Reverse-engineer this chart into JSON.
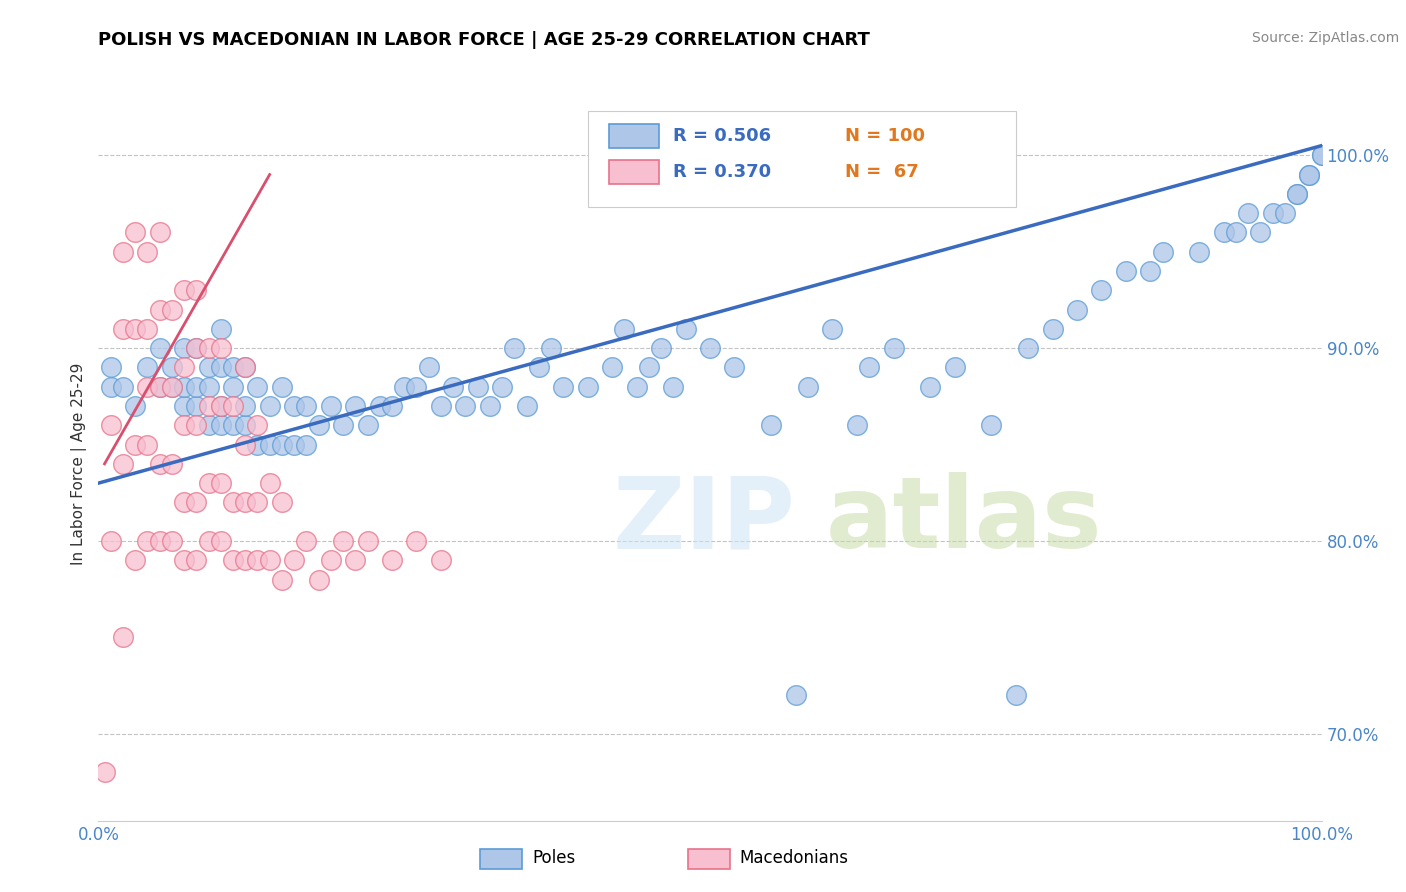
{
  "title": "POLISH VS MACEDONIAN IN LABOR FORCE | AGE 25-29 CORRELATION CHART",
  "source": "Source: ZipAtlas.com",
  "ylabel": "In Labor Force | Age 25-29",
  "xlim": [
    0.0,
    1.0
  ],
  "ylim": [
    0.655,
    1.025
  ],
  "y_ticks_right": [
    0.7,
    0.8,
    0.9,
    1.0
  ],
  "y_tick_labels_right": [
    "70.0%",
    "80.0%",
    "90.0%",
    "100.0%"
  ],
  "poles_color": "#aec6e8",
  "poles_edge_color": "#5b9bd5",
  "macedonians_color": "#f7bfd0",
  "macedonians_edge_color": "#e8728a",
  "trend_poles_color": "#3a6bbf",
  "trend_macedonians_color": "#d94f6e",
  "R_poles": 0.506,
  "N_poles": 100,
  "R_macedonians": 0.37,
  "N_macedonians": 67,
  "poles_x": [
    0.01,
    0.01,
    0.02,
    0.03,
    0.04,
    0.05,
    0.05,
    0.06,
    0.06,
    0.07,
    0.07,
    0.07,
    0.08,
    0.08,
    0.08,
    0.09,
    0.09,
    0.09,
    0.1,
    0.1,
    0.1,
    0.1,
    0.11,
    0.11,
    0.11,
    0.12,
    0.12,
    0.12,
    0.13,
    0.13,
    0.14,
    0.14,
    0.15,
    0.15,
    0.16,
    0.16,
    0.17,
    0.17,
    0.18,
    0.19,
    0.2,
    0.21,
    0.22,
    0.23,
    0.24,
    0.25,
    0.26,
    0.27,
    0.28,
    0.29,
    0.3,
    0.31,
    0.32,
    0.33,
    0.34,
    0.35,
    0.36,
    0.37,
    0.38,
    0.4,
    0.42,
    0.43,
    0.44,
    0.45,
    0.46,
    0.47,
    0.48,
    0.5,
    0.52,
    0.55,
    0.57,
    0.58,
    0.6,
    0.62,
    0.63,
    0.65,
    0.68,
    0.7,
    0.73,
    0.75,
    0.76,
    0.78,
    0.8,
    0.82,
    0.84,
    0.86,
    0.87,
    0.9,
    0.92,
    0.93,
    0.94,
    0.95,
    0.96,
    0.97,
    0.98,
    0.98,
    0.99,
    0.99,
    1.0,
    1.0
  ],
  "poles_y": [
    0.88,
    0.89,
    0.88,
    0.87,
    0.89,
    0.88,
    0.9,
    0.88,
    0.89,
    0.87,
    0.88,
    0.9,
    0.87,
    0.88,
    0.9,
    0.86,
    0.88,
    0.89,
    0.86,
    0.87,
    0.89,
    0.91,
    0.86,
    0.88,
    0.89,
    0.86,
    0.87,
    0.89,
    0.85,
    0.88,
    0.85,
    0.87,
    0.85,
    0.88,
    0.85,
    0.87,
    0.85,
    0.87,
    0.86,
    0.87,
    0.86,
    0.87,
    0.86,
    0.87,
    0.87,
    0.88,
    0.88,
    0.89,
    0.87,
    0.88,
    0.87,
    0.88,
    0.87,
    0.88,
    0.9,
    0.87,
    0.89,
    0.9,
    0.88,
    0.88,
    0.89,
    0.91,
    0.88,
    0.89,
    0.9,
    0.88,
    0.91,
    0.9,
    0.89,
    0.86,
    0.72,
    0.88,
    0.91,
    0.86,
    0.89,
    0.9,
    0.88,
    0.89,
    0.86,
    0.72,
    0.9,
    0.91,
    0.92,
    0.93,
    0.94,
    0.94,
    0.95,
    0.95,
    0.96,
    0.96,
    0.97,
    0.96,
    0.97,
    0.97,
    0.98,
    0.98,
    0.99,
    0.99,
    1.0,
    1.0
  ],
  "macedonians_x": [
    0.005,
    0.01,
    0.01,
    0.02,
    0.02,
    0.02,
    0.02,
    0.03,
    0.03,
    0.03,
    0.03,
    0.04,
    0.04,
    0.04,
    0.04,
    0.04,
    0.05,
    0.05,
    0.05,
    0.05,
    0.05,
    0.06,
    0.06,
    0.06,
    0.06,
    0.07,
    0.07,
    0.07,
    0.07,
    0.07,
    0.08,
    0.08,
    0.08,
    0.08,
    0.08,
    0.09,
    0.09,
    0.09,
    0.09,
    0.1,
    0.1,
    0.1,
    0.1,
    0.11,
    0.11,
    0.11,
    0.12,
    0.12,
    0.12,
    0.12,
    0.13,
    0.13,
    0.13,
    0.14,
    0.14,
    0.15,
    0.15,
    0.16,
    0.17,
    0.18,
    0.19,
    0.2,
    0.21,
    0.22,
    0.24,
    0.26,
    0.28
  ],
  "macedonians_y": [
    0.68,
    0.8,
    0.86,
    0.75,
    0.84,
    0.91,
    0.95,
    0.79,
    0.85,
    0.91,
    0.96,
    0.8,
    0.85,
    0.88,
    0.91,
    0.95,
    0.8,
    0.84,
    0.88,
    0.92,
    0.96,
    0.8,
    0.84,
    0.88,
    0.92,
    0.79,
    0.82,
    0.86,
    0.89,
    0.93,
    0.79,
    0.82,
    0.86,
    0.9,
    0.93,
    0.8,
    0.83,
    0.87,
    0.9,
    0.8,
    0.83,
    0.87,
    0.9,
    0.79,
    0.82,
    0.87,
    0.79,
    0.82,
    0.85,
    0.89,
    0.79,
    0.82,
    0.86,
    0.79,
    0.83,
    0.78,
    0.82,
    0.79,
    0.8,
    0.78,
    0.79,
    0.8,
    0.79,
    0.8,
    0.79,
    0.8,
    0.79
  ],
  "trend_poles_x0": 0.0,
  "trend_poles_x1": 1.0,
  "trend_poles_y0": 0.83,
  "trend_poles_y1": 1.005,
  "trend_mac_x0": 0.005,
  "trend_mac_x1": 0.14,
  "trend_mac_y0": 0.84,
  "trend_mac_y1": 0.99
}
